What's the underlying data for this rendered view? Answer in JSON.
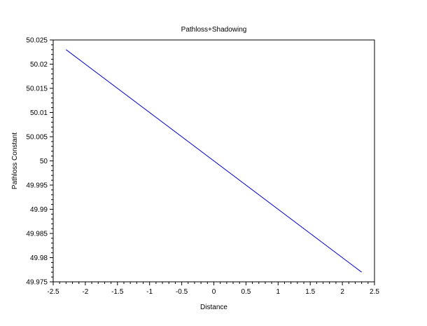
{
  "chart_data": {
    "type": "line",
    "title": "Pathloss+Shadowing",
    "xlabel": "Distance",
    "ylabel": "Pathloss Constant",
    "xlim": [
      -2.5,
      2.5
    ],
    "ylim": [
      49.975,
      50.025
    ],
    "xticks": [
      "-2.5",
      "-2",
      "-1.5",
      "-1",
      "-0.5",
      "0",
      "0.5",
      "1",
      "1.5",
      "2",
      "2.5"
    ],
    "yticks": [
      "49.975",
      "49.98",
      "49.985",
      "49.99",
      "49.995",
      "50",
      "50.005",
      "50.01",
      "50.015",
      "50.02",
      "50.025"
    ],
    "grid": false,
    "series": [
      {
        "color": "#0000cc",
        "x": [
          -2.3,
          2.3
        ],
        "y": [
          50.023,
          49.977
        ]
      }
    ]
  }
}
